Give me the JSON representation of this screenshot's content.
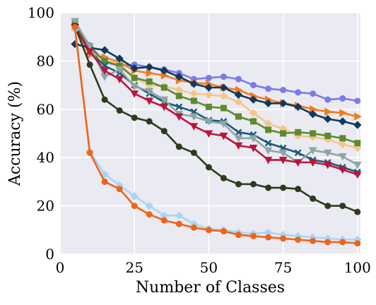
{
  "chart_data": {
    "type": "line",
    "xlabel": "Number of Classes",
    "ylabel": "Accuracy (%)",
    "xlim": [
      0,
      101
    ],
    "ylim": [
      0,
      100
    ],
    "xticks": [
      0,
      25,
      50,
      75,
      100
    ],
    "yticks": [
      0,
      20,
      40,
      60,
      80,
      100
    ],
    "grid": true,
    "x": [
      5,
      10,
      15,
      20,
      25,
      30,
      35,
      40,
      45,
      50,
      55,
      60,
      65,
      70,
      75,
      80,
      85,
      90,
      95,
      100
    ],
    "series": [
      {
        "color": "#7b7bea",
        "marker": "circle",
        "values": [
          95.5,
          86.5,
          79.5,
          78,
          78.5,
          77.5,
          76.5,
          75,
          72.5,
          73,
          73.5,
          72.5,
          70,
          68.5,
          68,
          67,
          66.5,
          64,
          64.5,
          63.5
        ]
      },
      {
        "color": "#f47a1f",
        "marker": "triangle-right",
        "values": [
          94,
          82.5,
          81.5,
          79.5,
          76,
          75,
          74,
          72,
          71,
          70.5,
          69,
          68,
          65.5,
          64,
          62.5,
          61.5,
          60,
          59,
          58.5,
          57
        ]
      },
      {
        "color": "#f4c68c",
        "marker": "diamond",
        "values": [
          94.5,
          85,
          80,
          79,
          73,
          70,
          69.5,
          68,
          66.5,
          66,
          65.5,
          63,
          58.5,
          54,
          52,
          49,
          48.5,
          47.5,
          45.5,
          44
        ]
      },
      {
        "color": "#5e8a2e",
        "marker": "square",
        "values": [
          96,
          85.5,
          80,
          78,
          73,
          71.5,
          69,
          65.5,
          63.5,
          61,
          60.5,
          57,
          55,
          51.5,
          50,
          50.5,
          50,
          49,
          48,
          46
        ]
      },
      {
        "color": "#0f3a5a",
        "marker": "diamond",
        "values": [
          87,
          85.5,
          84.5,
          81,
          77,
          77.5,
          76,
          73.5,
          70.5,
          69,
          69,
          66,
          64,
          62.5,
          62.5,
          61,
          58,
          56,
          55,
          53.5
        ]
      },
      {
        "color": "#1a5a7a",
        "marker": "x",
        "values": [
          94.5,
          84,
          78,
          75,
          70,
          66.5,
          63,
          61,
          59,
          55.5,
          55,
          50.5,
          49.5,
          46,
          44,
          42,
          39,
          38,
          36,
          34
        ]
      },
      {
        "color": "#8fa6a2",
        "marker": "triangle-down",
        "values": [
          96.5,
          86,
          73.5,
          76.5,
          69.5,
          67.5,
          64,
          58,
          57,
          55,
          54,
          48,
          48,
          43,
          42,
          38,
          43,
          42,
          40.5,
          37
        ]
      },
      {
        "color": "#b8173c",
        "marker": "triangle-down",
        "values": [
          94,
          84,
          76,
          72.5,
          66.5,
          63.5,
          61,
          57,
          53,
          50,
          49,
          45,
          44,
          39,
          39,
          38,
          38,
          37,
          35,
          33
        ]
      },
      {
        "color": "#2f3a1c",
        "marker": "circle",
        "values": [
          94.5,
          78.5,
          64,
          59.5,
          56.5,
          55,
          51,
          44.5,
          42,
          36,
          31.5,
          29,
          29,
          27.5,
          27.5,
          27,
          23,
          20,
          20,
          17.5
        ]
      },
      {
        "color": "#a9d4f7",
        "marker": "diamond",
        "values": [
          93,
          42.5,
          33,
          28.5,
          24,
          20,
          16,
          16,
          12.5,
          10.5,
          10,
          9,
          8.5,
          9,
          8,
          7.5,
          7,
          6.5,
          6,
          6
        ]
      },
      {
        "color": "#ef6418",
        "marker": "circle",
        "values": [
          94,
          42,
          30,
          27,
          20,
          16.5,
          14,
          12.5,
          11,
          10,
          9.5,
          8,
          7.5,
          7,
          6.5,
          6,
          5.5,
          5,
          5,
          4.5
        ]
      }
    ]
  }
}
